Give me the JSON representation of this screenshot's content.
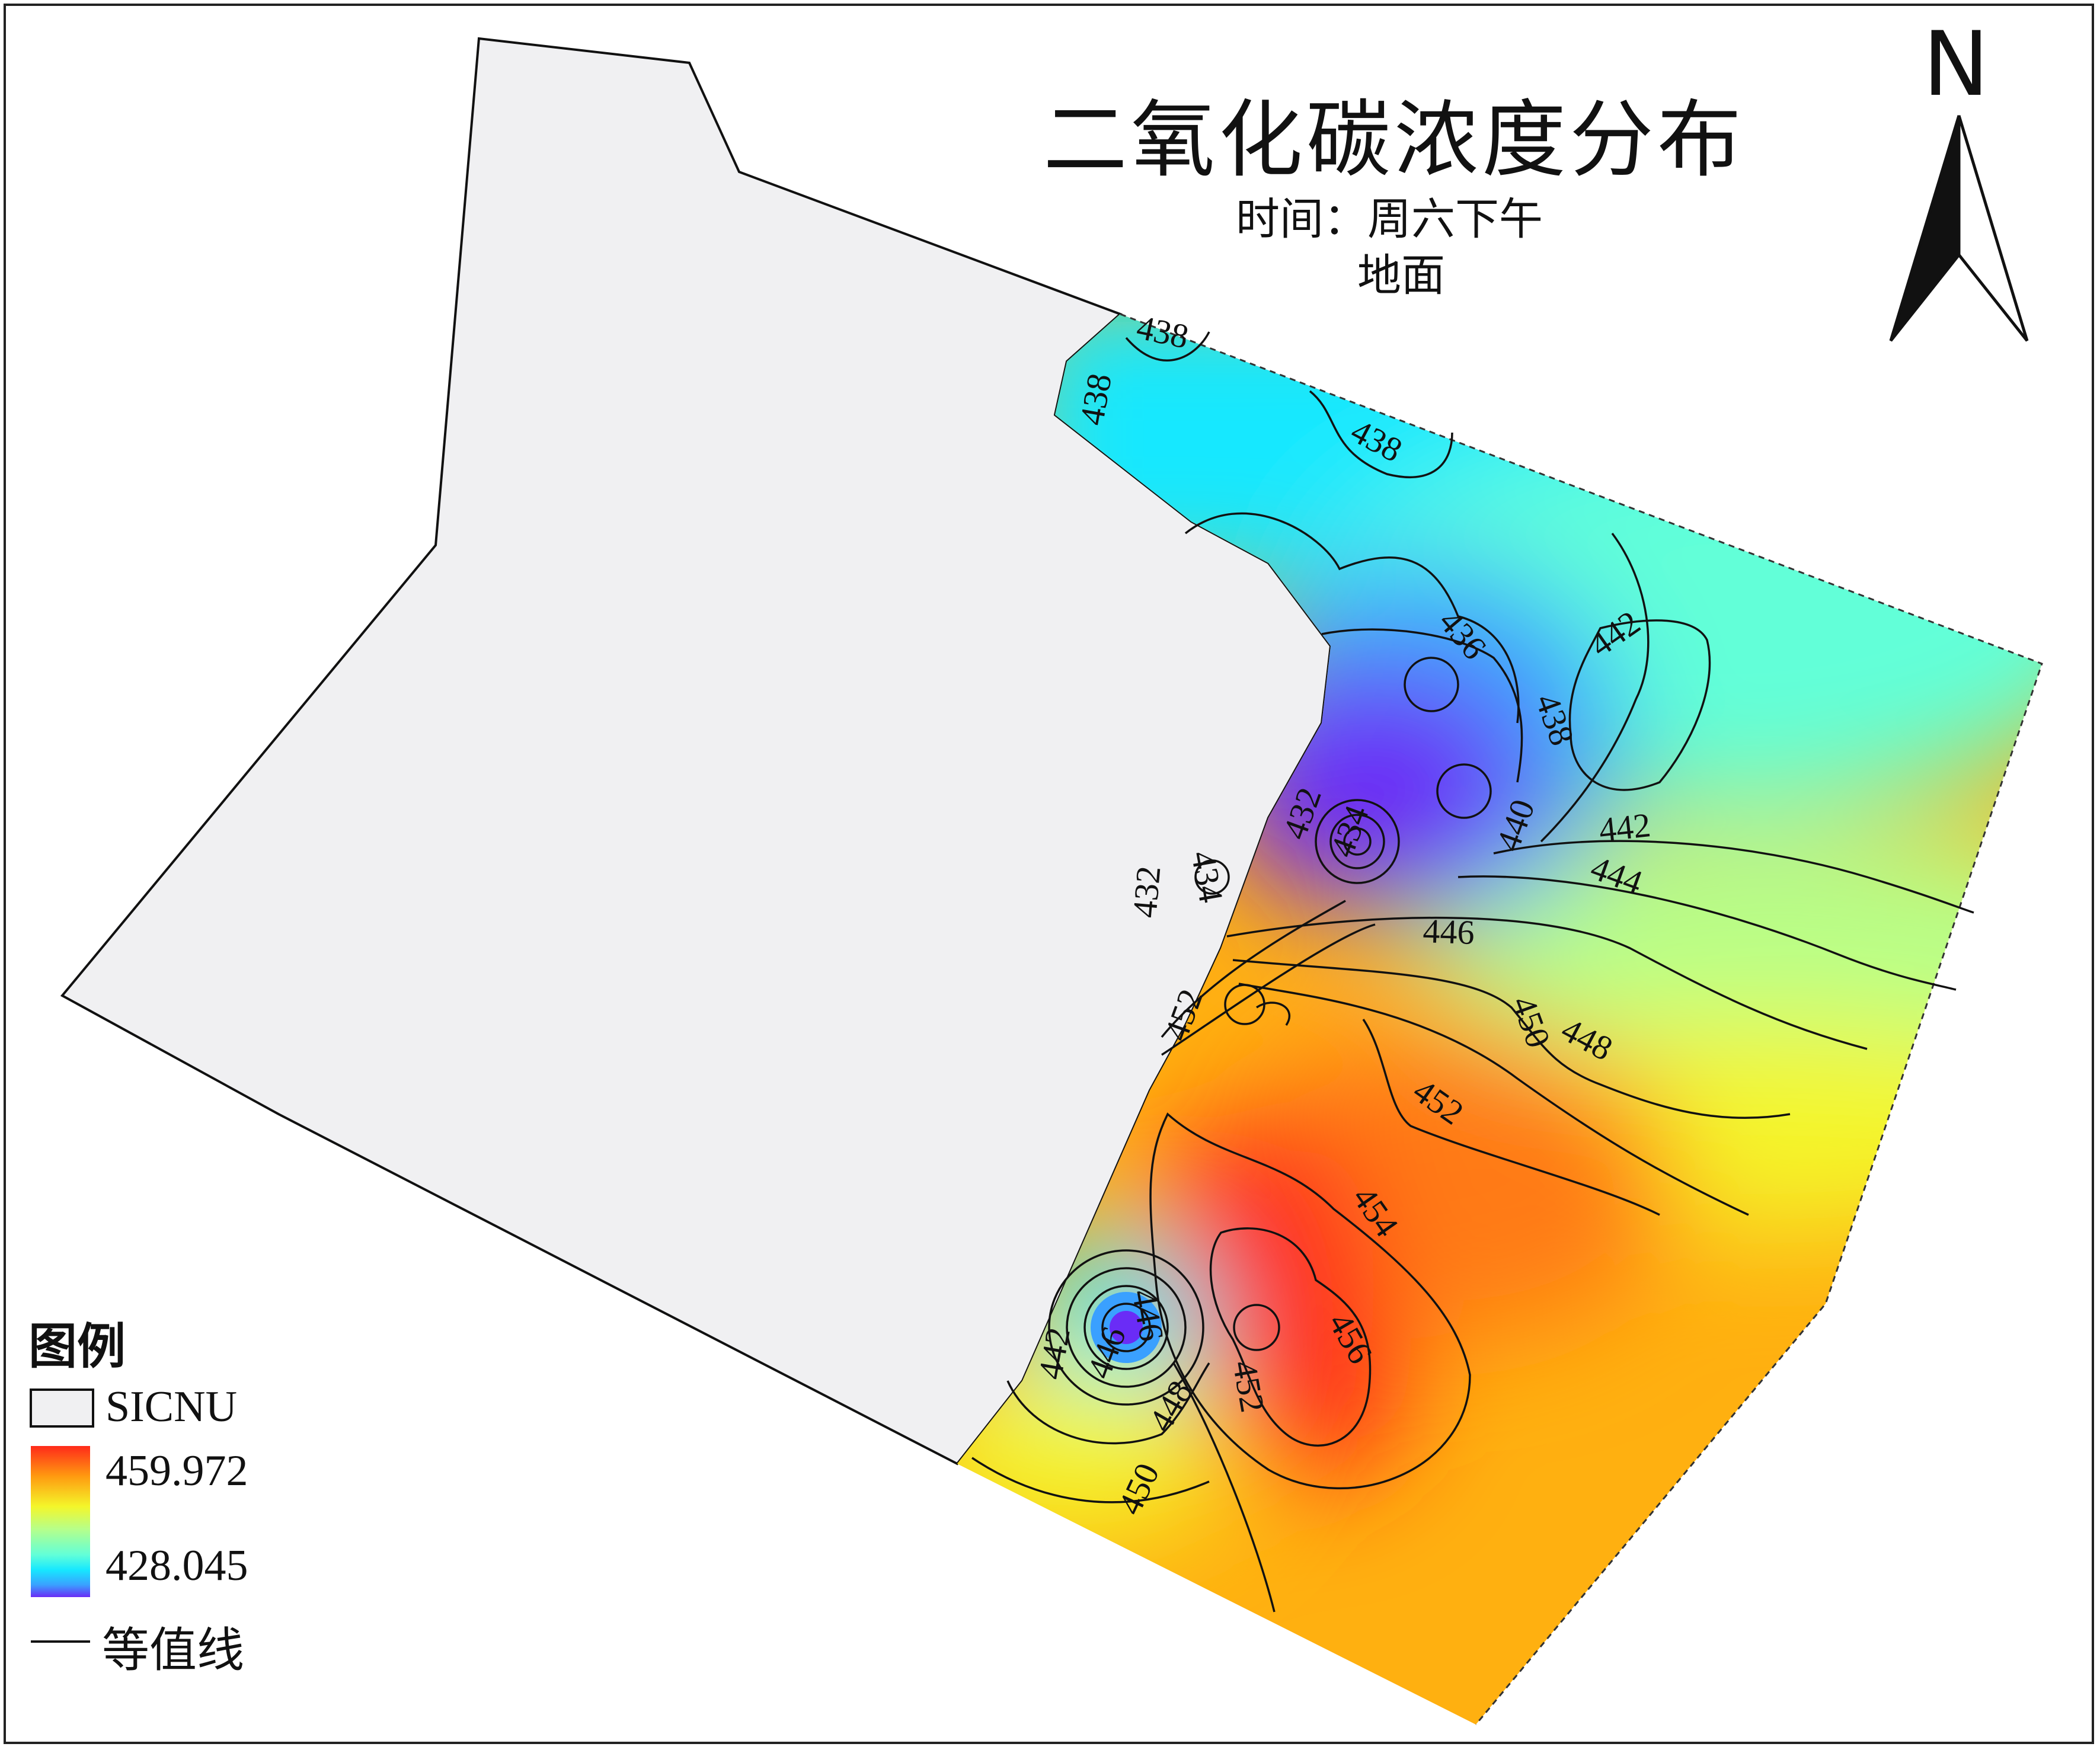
{
  "title": "二氧化碳浓度分布",
  "subtitle_time": "时间：周六下午",
  "subtitle_layer": "地面",
  "north_arrow": {
    "label": "N"
  },
  "legend": {
    "title": "图例",
    "boundary_label": "SICNU",
    "ramp_max": "459.972",
    "ramp_min": "428.045",
    "contour_label": "等值线",
    "colors": [
      "#ff2a1a",
      "#ff7a12",
      "#ffb010",
      "#f4f62a",
      "#b6ff8a",
      "#62ffd8",
      "#16e8ff",
      "#3aa0ff",
      "#6a2cf6"
    ]
  },
  "contour_labels": [
    "438",
    "438",
    "438",
    "436",
    "438",
    "442",
    "442",
    "444",
    "446",
    "440",
    "432",
    "434",
    "434",
    "432",
    "452",
    "450",
    "448",
    "452",
    "454",
    "456",
    "452",
    "442",
    "446",
    "446",
    "448",
    "450"
  ],
  "colors": {
    "boundary_fill": "#f0f0f2",
    "boundary_stroke": "#111111"
  }
}
